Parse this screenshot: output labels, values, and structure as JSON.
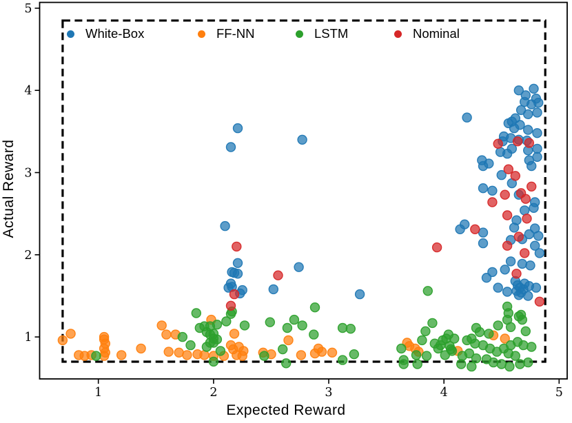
{
  "chart_data": {
    "type": "scatter",
    "title": "",
    "xlabel": "Expected Reward",
    "ylabel": "Actual Reward",
    "xlim": [
      0.49,
      5.07
    ],
    "ylim": [
      0.49,
      5.07
    ],
    "x_ticks": [
      1,
      2,
      3,
      4,
      5
    ],
    "y_ticks": [
      1,
      2,
      3,
      4,
      5
    ],
    "grid": false,
    "legend_position": "top-inside-horizontal",
    "frame_color": "#000000",
    "dashed_region": {
      "x0": 0.69,
      "y0": 0.7,
      "x1": 4.88,
      "y1": 4.85,
      "stroke": "#000000",
      "style": "dashed"
    },
    "series": [
      {
        "name": "White-Box",
        "color": "#1f77b4",
        "points": [
          [
            2.21,
            3.54
          ],
          [
            2.15,
            3.31
          ],
          [
            2.77,
            3.4
          ],
          [
            2.1,
            2.35
          ],
          [
            2.21,
            1.9
          ],
          [
            2.16,
            1.79
          ],
          [
            2.18,
            1.78
          ],
          [
            2.21,
            1.77
          ],
          [
            2.15,
            1.65
          ],
          [
            2.13,
            1.6
          ],
          [
            2.16,
            1.61
          ],
          [
            2.25,
            1.57
          ],
          [
            2.23,
            1.53
          ],
          [
            2.52,
            1.58
          ],
          [
            2.74,
            1.85
          ],
          [
            3.27,
            1.52
          ],
          [
            4.2,
            3.67
          ],
          [
            4.65,
            4.0
          ],
          [
            4.71,
            3.94
          ],
          [
            4.78,
            4.02
          ],
          [
            4.8,
            3.9
          ],
          [
            4.7,
            3.86
          ],
          [
            4.76,
            3.83
          ],
          [
            4.82,
            3.85
          ],
          [
            4.67,
            3.76
          ],
          [
            4.73,
            3.71
          ],
          [
            4.81,
            3.73
          ],
          [
            4.62,
            3.66
          ],
          [
            4.59,
            3.62
          ],
          [
            4.66,
            3.58
          ],
          [
            4.56,
            3.6
          ],
          [
            4.61,
            3.54
          ],
          [
            4.73,
            3.52
          ],
          [
            4.81,
            3.48
          ],
          [
            4.52,
            3.44
          ],
          [
            4.58,
            3.42
          ],
          [
            4.65,
            3.4
          ],
          [
            4.72,
            3.39
          ],
          [
            4.51,
            3.38
          ],
          [
            4.59,
            3.29
          ],
          [
            4.81,
            3.29
          ],
          [
            4.49,
            3.25
          ],
          [
            4.55,
            3.23
          ],
          [
            4.73,
            3.27
          ],
          [
            4.81,
            3.19
          ],
          [
            4.33,
            3.15
          ],
          [
            4.39,
            3.11
          ],
          [
            4.34,
            3.08
          ],
          [
            4.74,
            3.15
          ],
          [
            4.76,
            3.08
          ],
          [
            4.5,
            2.97
          ],
          [
            4.59,
            2.87
          ],
          [
            4.34,
            2.81
          ],
          [
            4.42,
            2.78
          ],
          [
            4.65,
            2.73
          ],
          [
            4.79,
            2.64
          ],
          [
            4.78,
            2.57
          ],
          [
            4.7,
            2.54
          ],
          [
            4.63,
            2.42
          ],
          [
            4.18,
            2.37
          ],
          [
            4.14,
            2.31
          ],
          [
            4.34,
            2.27
          ],
          [
            4.61,
            2.33
          ],
          [
            4.79,
            2.32
          ],
          [
            4.82,
            2.23
          ],
          [
            4.58,
            2.18
          ],
          [
            4.68,
            2.19
          ],
          [
            4.74,
            2.25
          ],
          [
            4.79,
            2.11
          ],
          [
            4.34,
            2.14
          ],
          [
            4.83,
            2.02
          ],
          [
            4.58,
            1.92
          ],
          [
            4.68,
            1.89
          ],
          [
            4.75,
            1.87
          ],
          [
            4.53,
            1.82
          ],
          [
            4.42,
            1.79
          ],
          [
            4.37,
            1.72
          ],
          [
            4.47,
            1.6
          ],
          [
            4.55,
            1.55
          ],
          [
            4.74,
            1.62
          ],
          [
            4.8,
            1.6
          ],
          [
            4.73,
            1.5
          ],
          [
            4.62,
            1.68
          ],
          [
            4.64,
            1.63
          ],
          [
            4.66,
            1.6
          ],
          [
            4.63,
            1.56
          ],
          [
            4.67,
            1.54
          ],
          [
            4.65,
            1.51
          ],
          [
            4.69,
            1.58
          ],
          [
            4.7,
            1.65
          ]
        ]
      },
      {
        "name": "FF-NN",
        "color": "#ff7f0e",
        "points": [
          [
            0.69,
            0.96
          ],
          [
            0.76,
            1.04
          ],
          [
            0.83,
            0.78
          ],
          [
            0.88,
            0.77
          ],
          [
            0.94,
            0.78
          ],
          [
            1.05,
            1.0
          ],
          [
            1.05,
            0.97
          ],
          [
            1.06,
            0.92
          ],
          [
            1.05,
            0.86
          ],
          [
            1.06,
            0.81
          ],
          [
            1.05,
            0.77
          ],
          [
            1.2,
            0.78
          ],
          [
            1.37,
            0.86
          ],
          [
            1.55,
            1.14
          ],
          [
            1.59,
            1.03
          ],
          [
            1.67,
            1.03
          ],
          [
            1.61,
            0.82
          ],
          [
            1.7,
            0.81
          ],
          [
            1.77,
            0.78
          ],
          [
            1.86,
            0.79
          ],
          [
            1.92,
            0.78
          ],
          [
            2.0,
            0.77
          ],
          [
            1.98,
            1.21
          ],
          [
            2.18,
            1.04
          ],
          [
            2.15,
            0.9
          ],
          [
            2.17,
            0.85
          ],
          [
            2.22,
            0.88
          ],
          [
            2.26,
            0.83
          ],
          [
            2.2,
            0.78
          ],
          [
            2.25,
            0.77
          ],
          [
            2.09,
            0.77
          ],
          [
            2.43,
            0.81
          ],
          [
            2.5,
            0.79
          ],
          [
            2.65,
            0.96
          ],
          [
            2.76,
            0.78
          ],
          [
            2.91,
            0.86
          ],
          [
            2.94,
            0.82
          ],
          [
            2.88,
            0.8
          ],
          [
            3.03,
            0.81
          ],
          [
            3.68,
            0.93
          ],
          [
            3.7,
            0.89
          ],
          [
            3.75,
            0.86
          ],
          [
            3.78,
            0.82
          ],
          [
            4.12,
            0.83
          ],
          [
            4.43,
            1.02
          ],
          [
            4.53,
            0.98
          ]
        ]
      },
      {
        "name": "LSTM",
        "color": "#2ca02c",
        "points": [
          [
            0.98,
            0.77
          ],
          [
            1.73,
            1.0
          ],
          [
            1.85,
            1.29
          ],
          [
            1.88,
            1.11
          ],
          [
            1.92,
            1.13
          ],
          [
            1.97,
            1.03
          ],
          [
            1.8,
            0.9
          ],
          [
            2.0,
            0.93
          ],
          [
            1.94,
            1.06
          ],
          [
            2.0,
            1.04
          ],
          [
            2.0,
            0.98
          ],
          [
            2.03,
            0.97
          ],
          [
            1.97,
            0.93
          ],
          [
            1.94,
            0.88
          ],
          [
            2.06,
            0.83
          ],
          [
            2.0,
            0.7
          ],
          [
            2.16,
            1.31
          ],
          [
            2.11,
            1.19
          ],
          [
            2.03,
            1.15
          ],
          [
            1.97,
            1.13
          ],
          [
            2.15,
            1.28
          ],
          [
            2.27,
            1.14
          ],
          [
            2.49,
            1.18
          ],
          [
            2.64,
            1.11
          ],
          [
            2.7,
            1.21
          ],
          [
            2.77,
            1.14
          ],
          [
            2.88,
            1.36
          ],
          [
            2.87,
            1.03
          ],
          [
            2.6,
            0.85
          ],
          [
            2.44,
            0.77
          ],
          [
            2.63,
            0.68
          ],
          [
            3.12,
            1.11
          ],
          [
            3.19,
            1.1
          ],
          [
            3.22,
            0.79
          ],
          [
            3.12,
            0.72
          ],
          [
            3.63,
            0.86
          ],
          [
            3.65,
            0.72
          ],
          [
            3.76,
            0.78
          ],
          [
            3.81,
            0.96
          ],
          [
            3.84,
            1.07
          ],
          [
            3.9,
            1.17
          ],
          [
            3.85,
            0.77
          ],
          [
            3.86,
            1.56
          ],
          [
            3.77,
            0.67
          ],
          [
            3.65,
            0.67
          ],
          [
            3.92,
            0.92
          ],
          [
            3.95,
            0.86
          ],
          [
            4.02,
            0.98
          ],
          [
            4.05,
            0.89
          ],
          [
            4.07,
            0.83
          ],
          [
            4.01,
            0.78
          ],
          [
            3.97,
            0.9
          ],
          [
            3.99,
            0.96
          ],
          [
            4.04,
            1.03
          ],
          [
            4.09,
            0.98
          ],
          [
            4.06,
            0.85
          ],
          [
            4.2,
            0.96
          ],
          [
            4.24,
            0.98
          ],
          [
            4.27,
            0.92
          ],
          [
            4.34,
            0.9
          ],
          [
            4.4,
            0.86
          ],
          [
            4.46,
            0.82
          ],
          [
            4.52,
            0.86
          ],
          [
            4.58,
            0.9
          ],
          [
            4.64,
            0.94
          ],
          [
            4.69,
            0.9
          ],
          [
            4.76,
            0.88
          ],
          [
            4.56,
            0.8
          ],
          [
            4.62,
            0.77
          ],
          [
            4.22,
            0.8
          ],
          [
            4.16,
            0.77
          ],
          [
            4.28,
            0.74
          ],
          [
            4.37,
            0.73
          ],
          [
            4.43,
            0.69
          ],
          [
            4.15,
            0.67
          ],
          [
            4.24,
            0.64
          ],
          [
            4.5,
            0.67
          ],
          [
            4.57,
            0.64
          ],
          [
            4.66,
            0.67
          ],
          [
            4.73,
            0.69
          ],
          [
            4.28,
            1.11
          ],
          [
            4.31,
            1.06
          ],
          [
            4.39,
            1.04
          ],
          [
            4.55,
            1.37
          ],
          [
            4.56,
            1.29
          ],
          [
            4.65,
            1.25
          ],
          [
            4.55,
            1.21
          ],
          [
            4.47,
            1.14
          ],
          [
            4.58,
            1.12
          ],
          [
            4.68,
            1.21
          ],
          [
            4.71,
            1.07
          ],
          [
            4.67,
            1.27
          ]
        ]
      },
      {
        "name": "Nominal",
        "color": "#d62728",
        "points": [
          [
            2.2,
            2.1
          ],
          [
            2.18,
            1.52
          ],
          [
            2.15,
            1.38
          ],
          [
            2.56,
            1.75
          ],
          [
            3.94,
            2.09
          ],
          [
            4.27,
            2.31
          ],
          [
            4.47,
            3.35
          ],
          [
            4.64,
            3.38
          ],
          [
            4.74,
            3.36
          ],
          [
            4.56,
            3.04
          ],
          [
            4.62,
            2.96
          ],
          [
            4.76,
            2.83
          ],
          [
            4.53,
            2.73
          ],
          [
            4.67,
            2.75
          ],
          [
            4.71,
            2.68
          ],
          [
            4.42,
            2.64
          ],
          [
            4.55,
            2.48
          ],
          [
            4.72,
            2.44
          ],
          [
            4.65,
            2.22
          ],
          [
            4.55,
            2.11
          ],
          [
            4.7,
            2.02
          ],
          [
            4.63,
            1.77
          ],
          [
            4.83,
            1.43
          ]
        ]
      }
    ],
    "style": {
      "marker_diameter_px": 13,
      "marker_fill_opacity": 0.72,
      "tick_label_color": "#000000",
      "background": "#ffffff"
    }
  }
}
